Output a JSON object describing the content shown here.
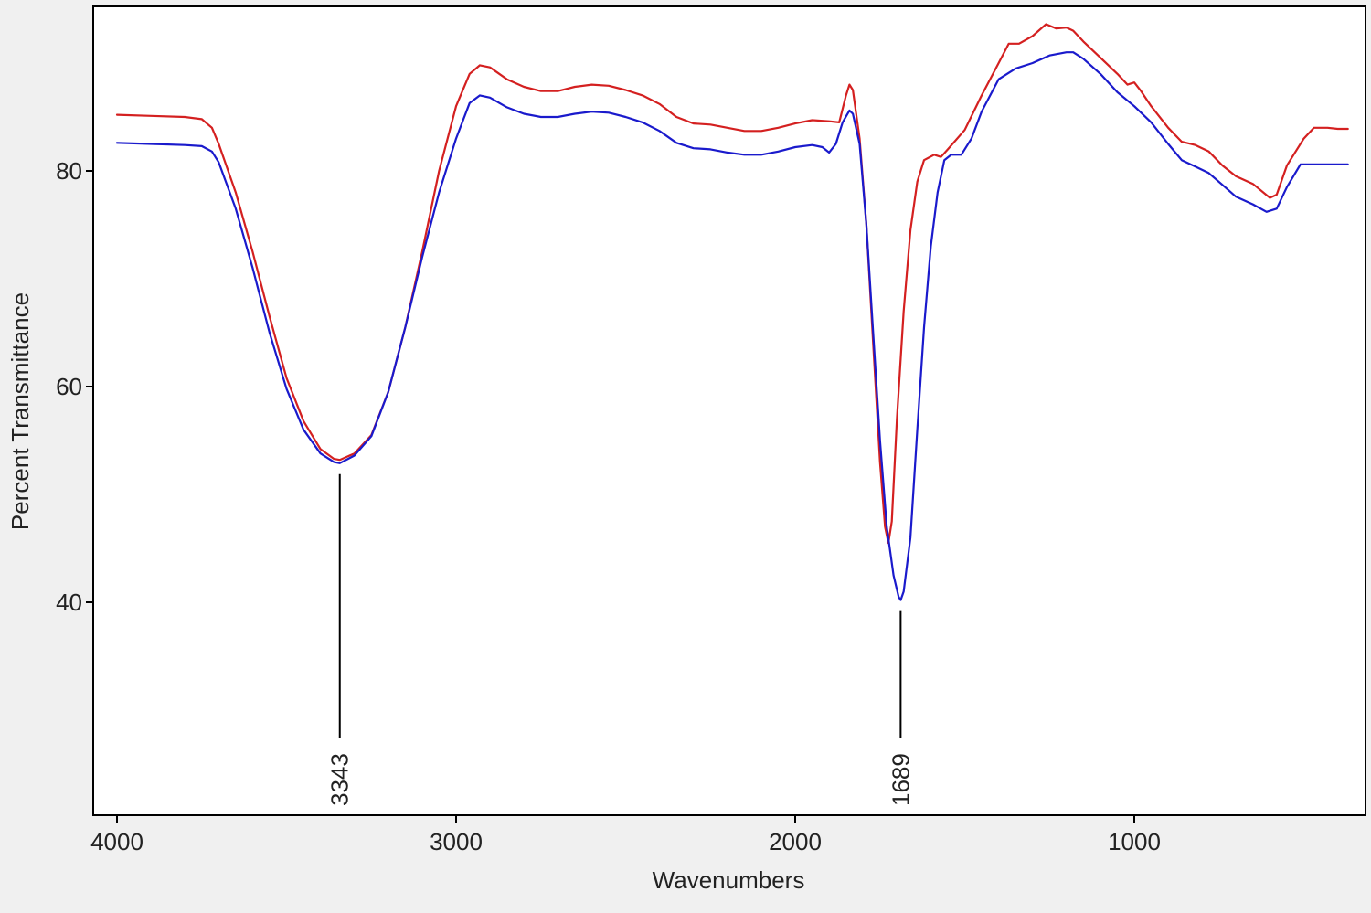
{
  "colors": {
    "background": "#f0f0f0",
    "plot_background": "#ffffff",
    "axis": "#000000"
  },
  "chart_data": {
    "type": "line",
    "title": "",
    "xlabel": "Wavenumbers",
    "ylabel": "Percent Transmittance",
    "xlim": [
      4000,
      370
    ],
    "ylim": [
      20,
      95
    ],
    "x_ticks": [
      4000,
      3000,
      2000,
      1000
    ],
    "y_ticks": [
      40,
      60,
      80
    ],
    "x_reversed": true,
    "grid": false,
    "legend": "none",
    "series": [
      {
        "color": "#d42020",
        "points": [
          [
            4000,
            85.2
          ],
          [
            3900,
            85.1
          ],
          [
            3800,
            85.0
          ],
          [
            3750,
            84.8
          ],
          [
            3720,
            84.0
          ],
          [
            3700,
            82.5
          ],
          [
            3650,
            78.0
          ],
          [
            3600,
            72.5
          ],
          [
            3550,
            66.5
          ],
          [
            3500,
            60.8
          ],
          [
            3450,
            56.8
          ],
          [
            3400,
            54.2
          ],
          [
            3360,
            53.3
          ],
          [
            3343,
            53.2
          ],
          [
            3300,
            53.8
          ],
          [
            3250,
            55.5
          ],
          [
            3200,
            59.5
          ],
          [
            3150,
            65.5
          ],
          [
            3100,
            72.5
          ],
          [
            3050,
            80.0
          ],
          [
            3000,
            86.0
          ],
          [
            2960,
            89.0
          ],
          [
            2930,
            89.8
          ],
          [
            2900,
            89.6
          ],
          [
            2850,
            88.5
          ],
          [
            2800,
            87.8
          ],
          [
            2750,
            87.4
          ],
          [
            2700,
            87.4
          ],
          [
            2650,
            87.8
          ],
          [
            2600,
            88.0
          ],
          [
            2550,
            87.9
          ],
          [
            2500,
            87.5
          ],
          [
            2450,
            87.0
          ],
          [
            2400,
            86.2
          ],
          [
            2350,
            85.0
          ],
          [
            2300,
            84.4
          ],
          [
            2250,
            84.3
          ],
          [
            2200,
            84.0
          ],
          [
            2150,
            83.7
          ],
          [
            2100,
            83.7
          ],
          [
            2050,
            84.0
          ],
          [
            2000,
            84.4
          ],
          [
            1950,
            84.7
          ],
          [
            1900,
            84.6
          ],
          [
            1870,
            84.5
          ],
          [
            1850,
            87.0
          ],
          [
            1840,
            88.0
          ],
          [
            1830,
            87.5
          ],
          [
            1810,
            83.0
          ],
          [
            1790,
            75.0
          ],
          [
            1770,
            64.0
          ],
          [
            1750,
            53.0
          ],
          [
            1735,
            47.0
          ],
          [
            1725,
            45.5
          ],
          [
            1715,
            47.5
          ],
          [
            1700,
            57.0
          ],
          [
            1680,
            67.0
          ],
          [
            1660,
            74.5
          ],
          [
            1640,
            79.0
          ],
          [
            1620,
            81.0
          ],
          [
            1590,
            81.5
          ],
          [
            1570,
            81.3
          ],
          [
            1550,
            82.0
          ],
          [
            1500,
            83.8
          ],
          [
            1450,
            87.0
          ],
          [
            1400,
            90.0
          ],
          [
            1370,
            91.8
          ],
          [
            1340,
            91.8
          ],
          [
            1300,
            92.5
          ],
          [
            1260,
            93.6
          ],
          [
            1230,
            93.2
          ],
          [
            1200,
            93.3
          ],
          [
            1180,
            93.0
          ],
          [
            1150,
            92.0
          ],
          [
            1100,
            90.5
          ],
          [
            1050,
            89.0
          ],
          [
            1020,
            88.0
          ],
          [
            1000,
            88.2
          ],
          [
            980,
            87.4
          ],
          [
            950,
            86.0
          ],
          [
            900,
            84.0
          ],
          [
            860,
            82.7
          ],
          [
            820,
            82.4
          ],
          [
            780,
            81.8
          ],
          [
            740,
            80.5
          ],
          [
            700,
            79.5
          ],
          [
            650,
            78.8
          ],
          [
            600,
            77.5
          ],
          [
            580,
            77.8
          ],
          [
            550,
            80.5
          ],
          [
            500,
            83.0
          ],
          [
            470,
            84.0
          ],
          [
            430,
            84.0
          ],
          [
            400,
            83.9
          ],
          [
            370,
            83.9
          ]
        ]
      },
      {
        "color": "#1a1acc",
        "points": [
          [
            4000,
            82.6
          ],
          [
            3900,
            82.5
          ],
          [
            3800,
            82.4
          ],
          [
            3750,
            82.3
          ],
          [
            3720,
            81.8
          ],
          [
            3700,
            80.8
          ],
          [
            3650,
            76.5
          ],
          [
            3600,
            71.0
          ],
          [
            3550,
            65.0
          ],
          [
            3500,
            59.8
          ],
          [
            3450,
            56.0
          ],
          [
            3400,
            53.8
          ],
          [
            3360,
            53.0
          ],
          [
            3343,
            52.9
          ],
          [
            3300,
            53.6
          ],
          [
            3250,
            55.4
          ],
          [
            3200,
            59.5
          ],
          [
            3150,
            65.5
          ],
          [
            3100,
            72.0
          ],
          [
            3050,
            78.0
          ],
          [
            3000,
            83.0
          ],
          [
            2960,
            86.3
          ],
          [
            2930,
            87.0
          ],
          [
            2900,
            86.8
          ],
          [
            2850,
            85.9
          ],
          [
            2800,
            85.3
          ],
          [
            2750,
            85.0
          ],
          [
            2700,
            85.0
          ],
          [
            2650,
            85.3
          ],
          [
            2600,
            85.5
          ],
          [
            2550,
            85.4
          ],
          [
            2500,
            85.0
          ],
          [
            2450,
            84.5
          ],
          [
            2400,
            83.7
          ],
          [
            2350,
            82.6
          ],
          [
            2300,
            82.1
          ],
          [
            2250,
            82.0
          ],
          [
            2200,
            81.7
          ],
          [
            2150,
            81.5
          ],
          [
            2100,
            81.5
          ],
          [
            2050,
            81.8
          ],
          [
            2000,
            82.2
          ],
          [
            1950,
            82.4
          ],
          [
            1920,
            82.2
          ],
          [
            1900,
            81.7
          ],
          [
            1880,
            82.5
          ],
          [
            1860,
            84.5
          ],
          [
            1840,
            85.6
          ],
          [
            1830,
            85.3
          ],
          [
            1810,
            82.5
          ],
          [
            1790,
            75.0
          ],
          [
            1770,
            65.0
          ],
          [
            1750,
            55.0
          ],
          [
            1730,
            47.0
          ],
          [
            1710,
            42.5
          ],
          [
            1695,
            40.5
          ],
          [
            1689,
            40.2
          ],
          [
            1680,
            41.0
          ],
          [
            1660,
            46.0
          ],
          [
            1640,
            56.0
          ],
          [
            1620,
            65.5
          ],
          [
            1600,
            73.0
          ],
          [
            1580,
            78.0
          ],
          [
            1560,
            81.0
          ],
          [
            1540,
            81.5
          ],
          [
            1510,
            81.5
          ],
          [
            1480,
            83.0
          ],
          [
            1450,
            85.5
          ],
          [
            1400,
            88.5
          ],
          [
            1350,
            89.5
          ],
          [
            1300,
            90.0
          ],
          [
            1250,
            90.7
          ],
          [
            1200,
            91.0
          ],
          [
            1180,
            91.0
          ],
          [
            1150,
            90.4
          ],
          [
            1100,
            89.0
          ],
          [
            1050,
            87.3
          ],
          [
            1000,
            86.0
          ],
          [
            950,
            84.5
          ],
          [
            900,
            82.5
          ],
          [
            860,
            81.0
          ],
          [
            820,
            80.4
          ],
          [
            780,
            79.8
          ],
          [
            740,
            78.7
          ],
          [
            700,
            77.6
          ],
          [
            650,
            76.9
          ],
          [
            610,
            76.2
          ],
          [
            580,
            76.5
          ],
          [
            550,
            78.5
          ],
          [
            510,
            80.6
          ],
          [
            470,
            80.6
          ],
          [
            430,
            80.6
          ],
          [
            400,
            80.6
          ],
          [
            370,
            80.6
          ]
        ]
      }
    ],
    "annotations": [
      {
        "text": "3343",
        "x": 3343,
        "y_top": 52.9
      },
      {
        "text": "1689",
        "x": 1689,
        "y_top": 40.2
      }
    ]
  }
}
